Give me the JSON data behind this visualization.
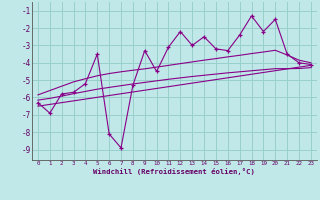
{
  "xlabel": "Windchill (Refroidissement éolien,°C)",
  "bg_color": "#c0e8e8",
  "grid_color": "#98d0cc",
  "line_color": "#880088",
  "spine_color": "#666666",
  "x_ticks": [
    0,
    1,
    2,
    3,
    4,
    5,
    6,
    7,
    8,
    9,
    10,
    11,
    12,
    13,
    14,
    15,
    16,
    17,
    18,
    19,
    20,
    21,
    22,
    23
  ],
  "y_ticks": [
    -1,
    -2,
    -3,
    -4,
    -5,
    -6,
    -7,
    -8,
    -9
  ],
  "ylim": [
    -9.6,
    -0.5
  ],
  "xlim": [
    -0.5,
    23.5
  ],
  "series": {
    "jagged": [
      [
        0,
        -6.3
      ],
      [
        1,
        -6.9
      ],
      [
        2,
        -5.8
      ],
      [
        3,
        -5.7
      ],
      [
        4,
        -5.2
      ],
      [
        5,
        -3.5
      ],
      [
        6,
        -8.1
      ],
      [
        7,
        -8.9
      ],
      [
        8,
        -5.3
      ],
      [
        9,
        -3.3
      ],
      [
        10,
        -4.5
      ],
      [
        11,
        -3.1
      ],
      [
        12,
        -2.2
      ],
      [
        13,
        -3.0
      ],
      [
        14,
        -2.5
      ],
      [
        15,
        -3.2
      ],
      [
        16,
        -3.3
      ],
      [
        17,
        -2.4
      ],
      [
        18,
        -1.3
      ],
      [
        19,
        -2.2
      ],
      [
        20,
        -1.5
      ],
      [
        21,
        -3.5
      ],
      [
        22,
        -4.0
      ],
      [
        23,
        -4.1
      ]
    ],
    "smooth_upper": [
      [
        0,
        -5.85
      ],
      [
        1,
        -5.6
      ],
      [
        2,
        -5.35
      ],
      [
        3,
        -5.1
      ],
      [
        4,
        -4.92
      ],
      [
        5,
        -4.75
      ],
      [
        6,
        -4.62
      ],
      [
        7,
        -4.52
      ],
      [
        8,
        -4.43
      ],
      [
        9,
        -4.35
      ],
      [
        10,
        -4.25
      ],
      [
        11,
        -4.15
      ],
      [
        12,
        -4.05
      ],
      [
        13,
        -3.95
      ],
      [
        14,
        -3.85
      ],
      [
        15,
        -3.76
      ],
      [
        16,
        -3.66
      ],
      [
        17,
        -3.57
      ],
      [
        18,
        -3.47
      ],
      [
        19,
        -3.38
      ],
      [
        20,
        -3.28
      ],
      [
        21,
        -3.55
      ],
      [
        22,
        -3.85
      ],
      [
        23,
        -4.0
      ]
    ],
    "smooth_lower": [
      [
        0,
        -6.15
      ],
      [
        1,
        -6.05
      ],
      [
        2,
        -5.92
      ],
      [
        3,
        -5.78
      ],
      [
        4,
        -5.65
      ],
      [
        5,
        -5.52
      ],
      [
        6,
        -5.42
      ],
      [
        7,
        -5.32
      ],
      [
        8,
        -5.22
      ],
      [
        9,
        -5.13
      ],
      [
        10,
        -5.04
      ],
      [
        11,
        -4.95
      ],
      [
        12,
        -4.87
      ],
      [
        13,
        -4.79
      ],
      [
        14,
        -4.72
      ],
      [
        15,
        -4.65
      ],
      [
        16,
        -4.58
      ],
      [
        17,
        -4.52
      ],
      [
        18,
        -4.46
      ],
      [
        19,
        -4.4
      ],
      [
        20,
        -4.34
      ],
      [
        21,
        -4.34
      ],
      [
        22,
        -4.33
      ],
      [
        23,
        -4.28
      ]
    ],
    "linear": [
      [
        0,
        -6.5
      ],
      [
        23,
        -4.15
      ]
    ]
  }
}
